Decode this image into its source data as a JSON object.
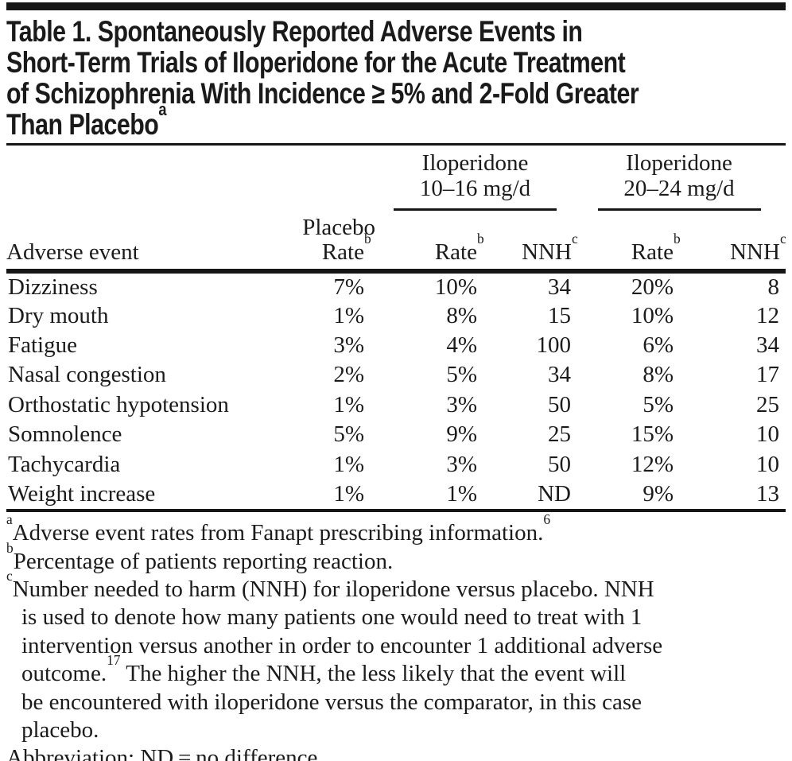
{
  "colors": {
    "ink": "#1b1b1b",
    "rule": "#161616",
    "background": "#ffffff"
  },
  "title": {
    "lines": [
      [
        {
          "t": "Table 1. Spontaneously Reported Adverse Events in"
        }
      ],
      [
        {
          "t": "Short-Term Trials of Iloperidone for the Acute Treatment"
        }
      ],
      [
        {
          "t": "of Schizophrenia With Incidence ≥ 5% and 2-Fold Greater"
        }
      ],
      [
        {
          "t": "Than Placebo"
        },
        {
          "sup": "a"
        }
      ]
    ]
  },
  "table": {
    "col1_header": "Adverse event",
    "placebo_header": {
      "line1": "Placebo",
      "label": "Rate",
      "sup": "b"
    },
    "groups": [
      {
        "drug": "Iloperidone",
        "dose": "10–16 mg/d",
        "rate_label": "Rate",
        "rate_sup": "b",
        "nnh_label": "NNH",
        "nnh_sup": "c"
      },
      {
        "drug": "Iloperidone",
        "dose": "20–24 mg/d",
        "rate_label": "Rate",
        "rate_sup": "b",
        "nnh_label": "NNH",
        "nnh_sup": "c"
      }
    ],
    "rows": [
      {
        "event": "Dizziness",
        "placebo_rate": "7%",
        "rate_10_16": "10%",
        "nnh_10_16": "34",
        "rate_20_24": "20%",
        "nnh_20_24": "8"
      },
      {
        "event": "Dry mouth",
        "placebo_rate": "1%",
        "rate_10_16": "8%",
        "nnh_10_16": "15",
        "rate_20_24": "10%",
        "nnh_20_24": "12"
      },
      {
        "event": "Fatigue",
        "placebo_rate": "3%",
        "rate_10_16": "4%",
        "nnh_10_16": "100",
        "rate_20_24": "6%",
        "nnh_20_24": "34"
      },
      {
        "event": "Nasal congestion",
        "placebo_rate": "2%",
        "rate_10_16": "5%",
        "nnh_10_16": "34",
        "rate_20_24": "8%",
        "nnh_20_24": "17"
      },
      {
        "event": "Orthostatic hypotension",
        "placebo_rate": "1%",
        "rate_10_16": "3%",
        "nnh_10_16": "50",
        "rate_20_24": "5%",
        "nnh_20_24": "25"
      },
      {
        "event": "Somnolence",
        "placebo_rate": "5%",
        "rate_10_16": "9%",
        "nnh_10_16": "25",
        "rate_20_24": "15%",
        "nnh_20_24": "10"
      },
      {
        "event": "Tachycardia",
        "placebo_rate": "1%",
        "rate_10_16": "3%",
        "nnh_10_16": "50",
        "rate_20_24": "12%",
        "nnh_20_24": "10"
      },
      {
        "event": "Weight increase",
        "placebo_rate": "1%",
        "rate_10_16": "1%",
        "nnh_10_16": "ND",
        "rate_20_24": "9%",
        "nnh_20_24": "13"
      }
    ]
  },
  "footnotes": [
    {
      "marker": "a",
      "lines": [
        [
          {
            "t": "Adverse event rates from Fanapt prescribing information."
          },
          {
            "sup": "6"
          }
        ]
      ]
    },
    {
      "marker": "b",
      "lines": [
        [
          {
            "t": "Percentage of patients reporting reaction."
          }
        ]
      ]
    },
    {
      "marker": "c",
      "lines": [
        [
          {
            "t": "Number needed to harm (NNH) for iloperidone versus placebo. NNH"
          }
        ],
        [
          {
            "t": "is used to denote how many patients one would need to treat with 1"
          }
        ],
        [
          {
            "t": "intervention versus another in order to encounter 1 additional adverse"
          }
        ],
        [
          {
            "t": "outcome."
          },
          {
            "sup": "17"
          },
          {
            "t": " The higher the NNH, the less likely that the event will"
          }
        ],
        [
          {
            "t": "be encountered with iloperidone versus the comparator, in this case"
          }
        ],
        [
          {
            "t": "placebo."
          }
        ]
      ]
    },
    {
      "marker": null,
      "lines": [
        [
          {
            "t": "Abbreviation: ND = no difference."
          }
        ]
      ]
    }
  ]
}
